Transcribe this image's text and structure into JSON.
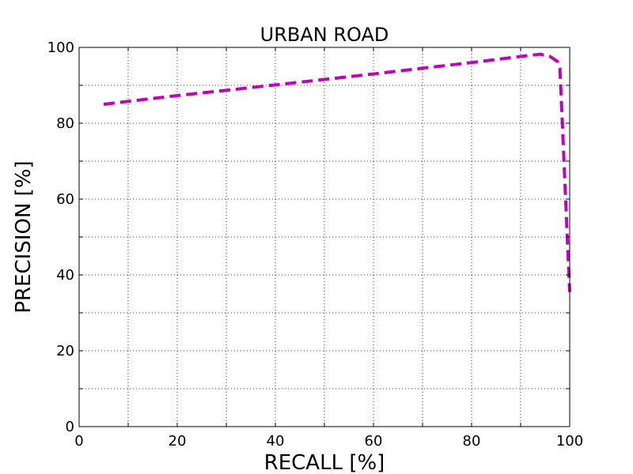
{
  "chart_data": {
    "type": "line",
    "title": "URBAN ROAD",
    "xlabel": "RECALL [%]",
    "ylabel": "PRECISION [%]",
    "xlim": [
      0,
      100
    ],
    "ylim": [
      0,
      100
    ],
    "x_ticks": [
      "0",
      "20",
      "40",
      "60",
      "80",
      "100"
    ],
    "y_ticks": [
      "0",
      "20",
      "40",
      "60",
      "80",
      "100"
    ],
    "grid": true,
    "legend": "none",
    "series": [
      {
        "color": "#bf00bf",
        "line_style": "dashed",
        "points": [
          {
            "x": 5,
            "y": 85
          },
          {
            "x": 20,
            "y": 87.3
          },
          {
            "x": 40,
            "y": 90.1
          },
          {
            "x": 60,
            "y": 93
          },
          {
            "x": 80,
            "y": 96
          },
          {
            "x": 90,
            "y": 97.6
          },
          {
            "x": 94,
            "y": 98.2
          },
          {
            "x": 96,
            "y": 97.6
          },
          {
            "x": 97.5,
            "y": 96.3
          },
          {
            "x": 98,
            "y": 94.5
          },
          {
            "x": 98.5,
            "y": 80
          },
          {
            "x": 99,
            "y": 65
          },
          {
            "x": 99.5,
            "y": 50
          },
          {
            "x": 100,
            "y": 35.5
          }
        ]
      }
    ]
  }
}
